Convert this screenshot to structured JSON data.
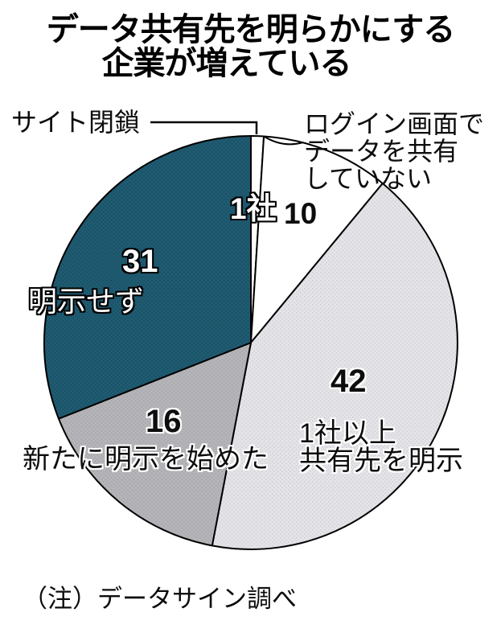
{
  "title": {
    "line1": "データ共有先を明らかにする",
    "line2": "企業が増えている"
  },
  "note": "（注）データサイン調べ",
  "colors": {
    "background": "#ffffff",
    "outline": "#000000",
    "teal": "#1f5b71",
    "light_gray": "#e4e4e8",
    "mid_gray": "#b5b5b9",
    "white": "#ffffff"
  },
  "chart_data": {
    "type": "pie",
    "start_angle": "top",
    "direction": "clockwise",
    "total": 100,
    "slices": [
      {
        "label": "サイト閉鎖",
        "value": 1,
        "value_label": "1社",
        "color": "#ffffff"
      },
      {
        "label": "ログイン画面でデータを共有していない",
        "value": 10,
        "value_label": "10",
        "color": "#ffffff"
      },
      {
        "label": "1社以上共有先を明示",
        "value": 42,
        "value_label": "42",
        "color": "#e4e4e8",
        "dot_color": "#cdcdd2"
      },
      {
        "label": "新たに明示を始めた",
        "value": 16,
        "value_label": "16",
        "color": "#b5b5b9",
        "dot_color": "#a2a2a6"
      },
      {
        "label": "明示せず",
        "value": 31,
        "value_label": "31",
        "color": "#1f5b71",
        "dot_color": "#16495d"
      }
    ],
    "outline_color": "#000000"
  },
  "labels": {
    "login_lines": {
      "l1": "ログイン画面で",
      "l2": "データを共有",
      "l3": "していない"
    },
    "disclose_lines": {
      "l1": "1社以上",
      "l2": "共有先を明示"
    }
  }
}
